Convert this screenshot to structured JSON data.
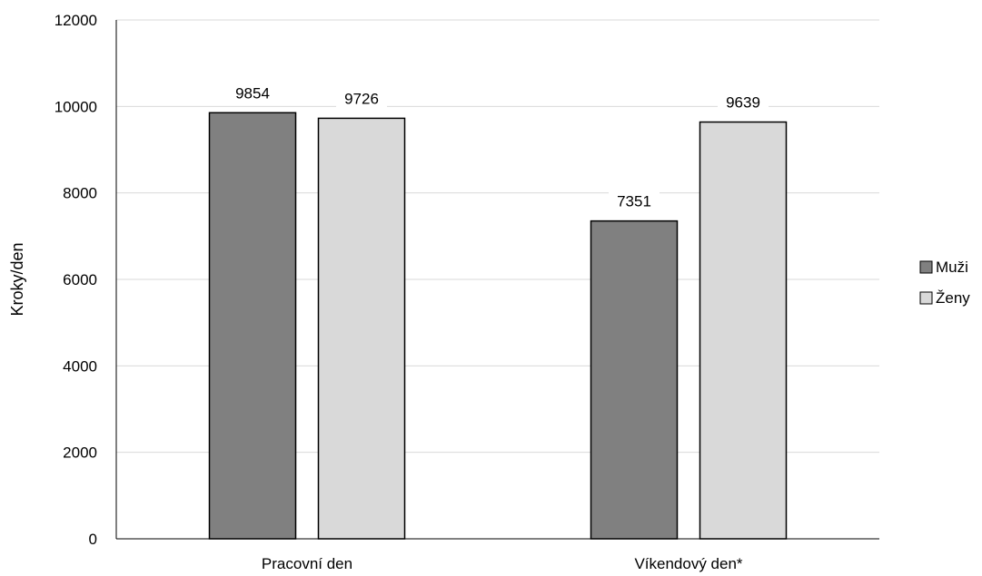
{
  "chart_data": {
    "type": "bar",
    "categories": [
      "Pracovní den",
      "Víkendový den*"
    ],
    "series": [
      {
        "name": "Muži",
        "values": [
          9854,
          7351
        ],
        "color": "#808080",
        "labels": [
          "9854",
          "7351"
        ]
      },
      {
        "name": "Ženy",
        "values": [
          9726,
          9639
        ],
        "color": "#d9d9d9",
        "labels": [
          "9726",
          "9639"
        ]
      }
    ],
    "ylabel": "Kroky/den",
    "ylim": [
      0,
      12000
    ],
    "yticks": [
      0,
      2000,
      4000,
      6000,
      8000,
      10000,
      12000
    ],
    "ytick_labels": [
      "0",
      "2000",
      "4000",
      "6000",
      "8000",
      "10000",
      "12000"
    ],
    "grid": true,
    "legend_position": "right",
    "bar_outline_color": "#000000",
    "grid_color": "#d9d9d9"
  }
}
